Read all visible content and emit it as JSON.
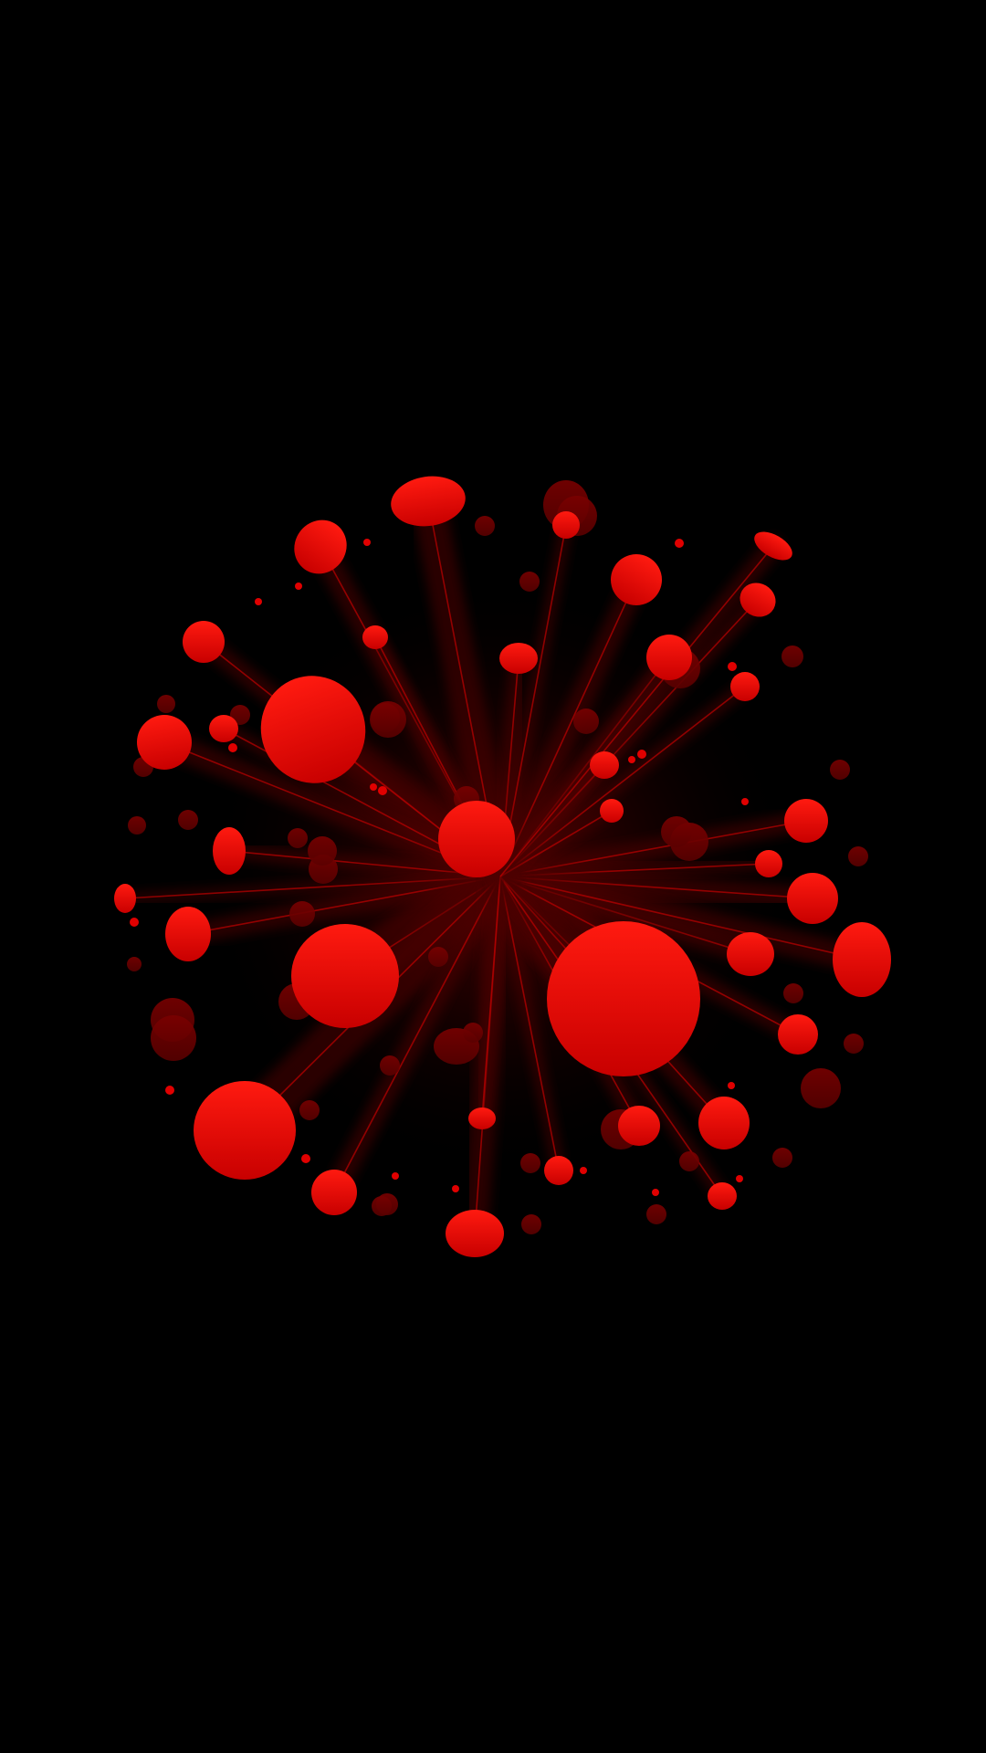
{
  "wallpaper": {
    "background_color": "#000000",
    "accent_color": "#ff0000",
    "motif": "red-splatter-burst"
  }
}
